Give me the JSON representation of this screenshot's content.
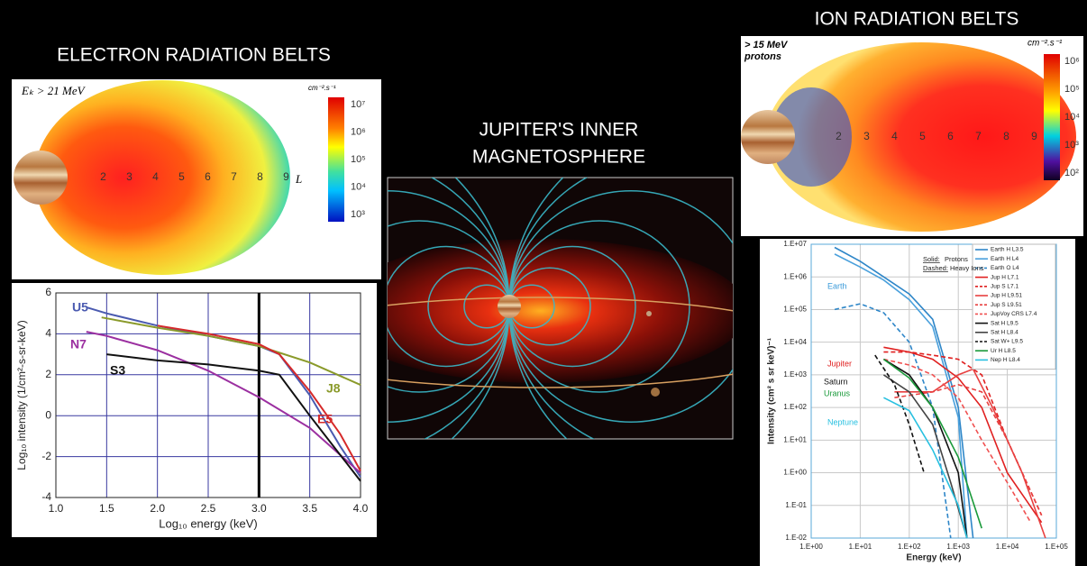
{
  "slide": {
    "electron_title": "ELECTRON RADIATION BELTS",
    "center_title": [
      "JUPITER'S INNER",
      "MAGNETOSPHERE"
    ],
    "ion_title": "ION RADIATION BELTS"
  },
  "electron_map": {
    "label": "Eₖ > 21 MeV",
    "unit": "cm⁻².s⁻¹",
    "l_labels": [
      "2",
      "3",
      "4",
      "5",
      "6",
      "7",
      "8",
      "9"
    ],
    "l_axis": "L",
    "colorbar_labels": [
      "10⁷",
      "10⁶",
      "10⁵",
      "10⁴",
      "10³"
    ]
  },
  "ion_map": {
    "label": [
      "> 15 MeV",
      "protons"
    ],
    "unit": "cm⁻².s⁻¹",
    "l_labels": [
      "2",
      "3",
      "4",
      "5",
      "6",
      "7",
      "8",
      "9"
    ],
    "colorbar_labels": [
      "10⁶",
      "10⁵",
      "10⁴",
      "10³",
      "10²"
    ]
  },
  "chart_data": [
    {
      "type": "line",
      "xlabel": "Log₁₀ energy (keV)",
      "ylabel": "Log₁₀ intensity (1/cm²-s-sr-keV)",
      "xlim": [
        1,
        4
      ],
      "ylim": [
        -4,
        6
      ],
      "xticks": [
        {
          "value": 1,
          "label": "1.0"
        },
        {
          "value": 1.5,
          "label": "1.5"
        },
        {
          "value": 2,
          "label": "2.0"
        },
        {
          "value": 2.5,
          "label": "2.5"
        },
        {
          "value": 3,
          "label": "3.0"
        },
        {
          "value": 3.5,
          "label": "3.5"
        },
        {
          "value": 4,
          "label": "4.0"
        }
      ],
      "yticks": [
        -4,
        -2,
        0,
        2,
        4,
        6
      ],
      "grid": true,
      "vline": 3,
      "series": [
        {
          "name": "U5",
          "color": "#4a5ab0",
          "x": [
            1.3,
            1.5,
            2.0,
            2.5,
            3.0,
            3.2,
            3.5,
            3.8,
            4.0
          ],
          "values": [
            5.3,
            5.0,
            4.4,
            3.9,
            3.4,
            3.0,
            1.0,
            -1.5,
            -3.0
          ]
        },
        {
          "name": "N7",
          "color": "#9b2fa0",
          "x": [
            1.3,
            1.5,
            2.0,
            2.5,
            3.0,
            3.5,
            4.0
          ],
          "values": [
            4.1,
            3.9,
            3.2,
            2.2,
            0.9,
            -0.6,
            -2.8
          ]
        },
        {
          "name": "S3",
          "color": "#111111",
          "x": [
            1.5,
            2.0,
            2.5,
            3.0,
            3.2,
            3.5,
            4.0
          ],
          "values": [
            3.0,
            2.7,
            2.5,
            2.2,
            2.0,
            0.0,
            -3.2
          ]
        },
        {
          "name": "J8",
          "color": "#8a9a2a",
          "x": [
            1.45,
            2.0,
            2.5,
            3.0,
            3.5,
            4.0
          ],
          "values": [
            4.8,
            4.3,
            3.9,
            3.4,
            2.6,
            1.5
          ]
        },
        {
          "name": "E5",
          "color": "#d62a2a",
          "x": [
            2.0,
            2.5,
            3.0,
            3.2,
            3.5,
            3.8,
            4.0
          ],
          "values": [
            4.4,
            4.0,
            3.5,
            3.0,
            1.2,
            -0.9,
            -2.7
          ]
        }
      ]
    },
    {
      "type": "line",
      "log_x": true,
      "log_y": true,
      "xlabel": "Energy (keV)",
      "ylabel": "Intensity (cm² s sr keV)⁻¹",
      "xlim": [
        1,
        100000
      ],
      "ylim": [
        0.01,
        10000000
      ],
      "xticks": [
        {
          "value": 1,
          "label": "1.E+00"
        },
        {
          "value": 10,
          "label": "1.E+01"
        },
        {
          "value": 100,
          "label": "1.E+02"
        },
        {
          "value": 1000,
          "label": "1.E+03"
        },
        {
          "value": 10000,
          "label": "1.E+04"
        },
        {
          "value": 100000,
          "label": "1.E+05"
        }
      ],
      "yticks": [
        {
          "value": 0.01,
          "label": "1.E-02"
        },
        {
          "value": 0.1,
          "label": "1.E-01"
        },
        {
          "value": 1,
          "label": "1.E+00"
        },
        {
          "value": 10,
          "label": "1.E+01"
        },
        {
          "value": 100,
          "label": "1.E+02"
        },
        {
          "value": 1000,
          "label": "1.E+03"
        },
        {
          "value": 10000,
          "label": "1.E+04"
        },
        {
          "value": 100000,
          "label": "1.E+05"
        },
        {
          "value": 1000000,
          "label": "1.E+06"
        },
        {
          "value": 10000000,
          "label": "1.E+07"
        }
      ],
      "grid": true,
      "legend": "top-right",
      "notes": [
        "Solid:",
        "Protons",
        "Dashed:",
        "Heavy Ions"
      ],
      "annotations": [
        {
          "text": "Earth",
          "color": "#3a9ad9"
        },
        {
          "text": "Jupiter",
          "color": "#e02020"
        },
        {
          "text": "Saturn",
          "color": "#111111"
        },
        {
          "text": "Uranus",
          "color": "#1a9a3a"
        },
        {
          "text": "Neptune",
          "color": "#28c0e0"
        }
      ],
      "series": [
        {
          "name": "Earth H L3.5",
          "color": "#2e86c8",
          "dash": false,
          "x": [
            3,
            10,
            30,
            100,
            300,
            1000,
            2000
          ],
          "values": [
            8000000,
            3000000,
            1000000,
            300000,
            50000,
            100,
            0.01
          ]
        },
        {
          "name": "Earth H L4",
          "color": "#4aa0dc",
          "dash": false,
          "x": [
            3,
            10,
            30,
            100,
            300,
            1000,
            1500
          ],
          "values": [
            5000000,
            2000000,
            800000,
            200000,
            30000,
            50,
            0.01
          ]
        },
        {
          "name": "Earth O L4",
          "color": "#2e86c8",
          "dash": true,
          "x": [
            3,
            10,
            30,
            100,
            300,
            700
          ],
          "values": [
            100000,
            150000,
            80000,
            10000,
            100,
            0.01
          ]
        },
        {
          "name": "Jup H L7.1",
          "color": "#e02020",
          "dash": false,
          "x": [
            30,
            100,
            300,
            1000,
            3000,
            10000,
            50000
          ],
          "values": [
            7000,
            5000,
            3000,
            800,
            100,
            1,
            0.03
          ]
        },
        {
          "name": "Jup S L7.1",
          "color": "#e02020",
          "dash": true,
          "x": [
            30,
            100,
            300,
            1000,
            3000,
            10000,
            50000
          ],
          "values": [
            5000,
            5000,
            4000,
            3000,
            1000,
            10,
            0.05
          ]
        },
        {
          "name": "Jup H L9.51",
          "color": "#e84040",
          "dash": false,
          "x": [
            50,
            300,
            1000,
            2000,
            5000,
            20000,
            60000
          ],
          "values": [
            300,
            300,
            1000,
            1500,
            100,
            1,
            0.01
          ]
        },
        {
          "name": "Jup S L9.51",
          "color": "#e84040",
          "dash": true,
          "x": [
            50,
            300,
            1000,
            3000,
            10000,
            50000
          ],
          "values": [
            200,
            300,
            500,
            300,
            10,
            0.05
          ]
        },
        {
          "name": "JupVoy CRS L7.4",
          "color": "#f05050",
          "dash": true,
          "x": [
            30,
            100,
            300,
            1000,
            3000,
            10000,
            30000
          ],
          "values": [
            3000,
            2000,
            1000,
            200,
            10,
            0.5,
            0.03
          ]
        },
        {
          "name": "Sat H L9.5",
          "color": "#111111",
          "dash": false,
          "x": [
            30,
            100,
            300,
            1000,
            1500
          ],
          "values": [
            3000,
            1000,
            100,
            1,
            0.01
          ]
        },
        {
          "name": "Sat H L8.4",
          "color": "#444444",
          "dash": false,
          "x": [
            30,
            100,
            300,
            700,
            1500
          ],
          "values": [
            1000,
            300,
            30,
            0.5,
            0.01
          ]
        },
        {
          "name": "Sat W+ L9.5",
          "color": "#111111",
          "dash": true,
          "x": [
            20,
            50,
            100,
            200
          ],
          "values": [
            4000,
            500,
            30,
            1
          ]
        },
        {
          "name": "Ur H L8.5",
          "color": "#1a9a3a",
          "dash": false,
          "x": [
            30,
            100,
            300,
            1000,
            3000
          ],
          "values": [
            3000,
            800,
            100,
            3,
            0.02
          ]
        },
        {
          "name": "Nep H L8.4",
          "color": "#28c0e0",
          "dash": false,
          "x": [
            30,
            100,
            300,
            1000,
            1500
          ],
          "values": [
            200,
            80,
            5,
            0.1,
            0.01
          ]
        }
      ]
    }
  ]
}
